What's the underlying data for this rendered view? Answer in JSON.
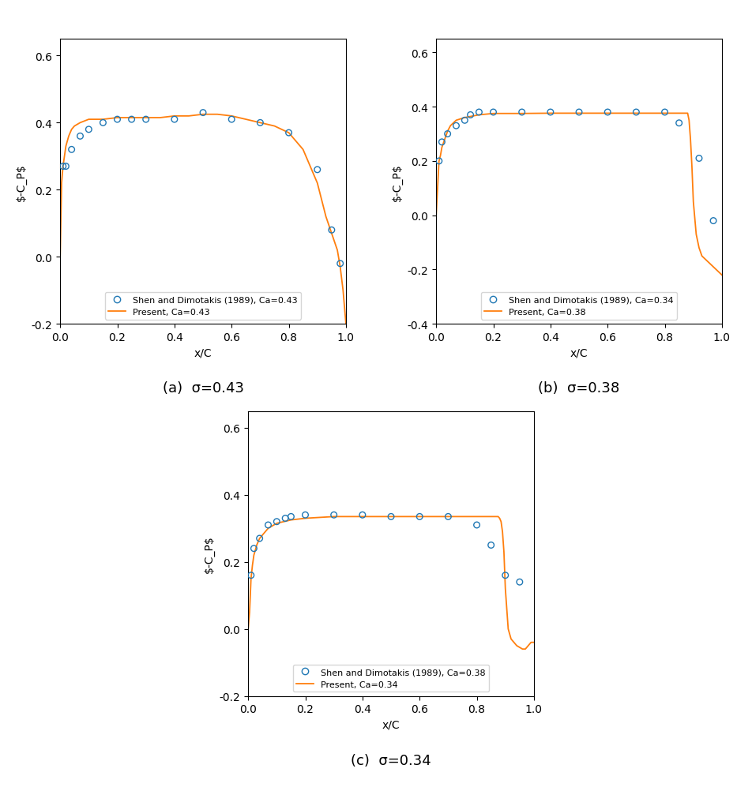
{
  "chart_data": [
    {
      "type": "line",
      "title": "(a)  σ=0.43",
      "xlabel": "x/C",
      "ylabel": "$-C_P$",
      "xlim": [
        0.0,
        1.0
      ],
      "xticks": [
        0.0,
        0.2,
        0.4,
        0.6,
        0.8,
        1.0
      ],
      "ylim": [
        -0.2,
        0.65
      ],
      "yticks": [
        -0.2,
        0.0,
        0.2,
        0.4,
        0.6
      ],
      "legend": "lower center",
      "series": [
        {
          "name": "Shen and Dimotakis (1989), Ca=0.43",
          "type": "scatter",
          "marker": "o",
          "x": [
            0.01,
            0.02,
            0.04,
            0.07,
            0.1,
            0.15,
            0.2,
            0.25,
            0.3,
            0.4,
            0.5,
            0.6,
            0.7,
            0.8,
            0.9,
            0.95,
            0.98
          ],
          "values": [
            0.27,
            0.27,
            0.32,
            0.36,
            0.38,
            0.4,
            0.41,
            0.41,
            0.41,
            0.41,
            0.43,
            0.41,
            0.4,
            0.37,
            0.26,
            0.08,
            -0.02
          ]
        },
        {
          "name": "Present, Ca=0.43",
          "type": "line",
          "x": [
            0.0,
            0.005,
            0.01,
            0.015,
            0.02,
            0.03,
            0.04,
            0.05,
            0.07,
            0.1,
            0.15,
            0.2,
            0.25,
            0.3,
            0.35,
            0.4,
            0.45,
            0.5,
            0.55,
            0.6,
            0.65,
            0.7,
            0.75,
            0.8,
            0.85,
            0.9,
            0.93,
            0.95,
            0.97,
            0.98,
            0.99,
            1.0
          ],
          "values": [
            0.0,
            0.22,
            0.27,
            0.3,
            0.33,
            0.36,
            0.38,
            0.39,
            0.4,
            0.41,
            0.41,
            0.415,
            0.415,
            0.415,
            0.415,
            0.42,
            0.42,
            0.425,
            0.425,
            0.42,
            0.41,
            0.4,
            0.39,
            0.37,
            0.32,
            0.22,
            0.12,
            0.07,
            0.02,
            -0.03,
            -0.1,
            -0.2
          ]
        }
      ]
    },
    {
      "type": "line",
      "title": "(b)  σ=0.38",
      "xlabel": "x/C",
      "ylabel": "$-C_P$",
      "xlim": [
        0.0,
        1.0
      ],
      "xticks": [
        0.0,
        0.2,
        0.4,
        0.6,
        0.8,
        1.0
      ],
      "ylim": [
        -0.4,
        0.65
      ],
      "yticks": [
        -0.4,
        -0.2,
        0.0,
        0.2,
        0.4,
        0.6
      ],
      "legend": "lower center",
      "series": [
        {
          "name": "Shen and Dimotakis (1989), Ca=0.34",
          "type": "scatter",
          "marker": "o",
          "x": [
            0.01,
            0.02,
            0.04,
            0.07,
            0.1,
            0.12,
            0.15,
            0.2,
            0.3,
            0.4,
            0.5,
            0.6,
            0.7,
            0.8,
            0.85,
            0.92,
            0.97
          ],
          "values": [
            0.2,
            0.27,
            0.3,
            0.33,
            0.35,
            0.37,
            0.38,
            0.38,
            0.38,
            0.38,
            0.38,
            0.38,
            0.38,
            0.38,
            0.34,
            0.21,
            -0.02
          ]
        },
        {
          "name": "Present, Ca=0.38",
          "type": "line",
          "x": [
            0.0,
            0.005,
            0.01,
            0.015,
            0.02,
            0.03,
            0.04,
            0.05,
            0.07,
            0.1,
            0.15,
            0.2,
            0.3,
            0.4,
            0.5,
            0.6,
            0.7,
            0.8,
            0.83,
            0.85,
            0.87,
            0.875,
            0.88,
            0.885,
            0.89,
            0.895,
            0.9,
            0.91,
            0.92,
            0.93,
            0.95,
            0.97,
            0.98,
            0.99,
            1.0
          ],
          "values": [
            0.0,
            0.1,
            0.2,
            0.22,
            0.25,
            0.28,
            0.31,
            0.33,
            0.35,
            0.36,
            0.37,
            0.375,
            0.375,
            0.376,
            0.376,
            0.376,
            0.376,
            0.376,
            0.376,
            0.376,
            0.376,
            0.376,
            0.376,
            0.35,
            0.28,
            0.18,
            0.05,
            -0.07,
            -0.12,
            -0.15,
            -0.17,
            -0.19,
            -0.2,
            -0.21,
            -0.22
          ]
        }
      ]
    },
    {
      "type": "line",
      "title": "(c)  σ=0.34",
      "xlabel": "x/C",
      "ylabel": "$-C_P$",
      "xlim": [
        0.0,
        1.0
      ],
      "xticks": [
        0.0,
        0.2,
        0.4,
        0.6,
        0.8,
        1.0
      ],
      "ylim": [
        -0.2,
        0.65
      ],
      "yticks": [
        -0.2,
        0.0,
        0.2,
        0.4,
        0.6
      ],
      "legend": "lower center",
      "series": [
        {
          "name": "Shen and Dimotakis (1989), Ca=0.38",
          "type": "scatter",
          "marker": "o",
          "x": [
            0.01,
            0.02,
            0.04,
            0.07,
            0.1,
            0.13,
            0.15,
            0.2,
            0.3,
            0.4,
            0.5,
            0.6,
            0.7,
            0.8,
            0.85,
            0.9,
            0.95
          ],
          "values": [
            0.16,
            0.24,
            0.27,
            0.31,
            0.32,
            0.33,
            0.335,
            0.34,
            0.34,
            0.34,
            0.335,
            0.335,
            0.335,
            0.31,
            0.25,
            0.16,
            0.14
          ]
        },
        {
          "name": "Present, Ca=0.34",
          "type": "line",
          "x": [
            0.0,
            0.005,
            0.01,
            0.015,
            0.02,
            0.03,
            0.04,
            0.05,
            0.07,
            0.1,
            0.15,
            0.2,
            0.3,
            0.4,
            0.5,
            0.6,
            0.7,
            0.8,
            0.85,
            0.87,
            0.875,
            0.88,
            0.885,
            0.89,
            0.895,
            0.9,
            0.91,
            0.92,
            0.94,
            0.96,
            0.97,
            0.98,
            0.99,
            1.0
          ],
          "values": [
            0.0,
            0.05,
            0.15,
            0.19,
            0.22,
            0.25,
            0.27,
            0.28,
            0.3,
            0.315,
            0.325,
            0.33,
            0.335,
            0.335,
            0.335,
            0.335,
            0.335,
            0.335,
            0.335,
            0.335,
            0.335,
            0.33,
            0.32,
            0.29,
            0.23,
            0.12,
            0.0,
            -0.03,
            -0.05,
            -0.06,
            -0.06,
            -0.05,
            -0.04,
            -0.04
          ]
        }
      ]
    }
  ]
}
